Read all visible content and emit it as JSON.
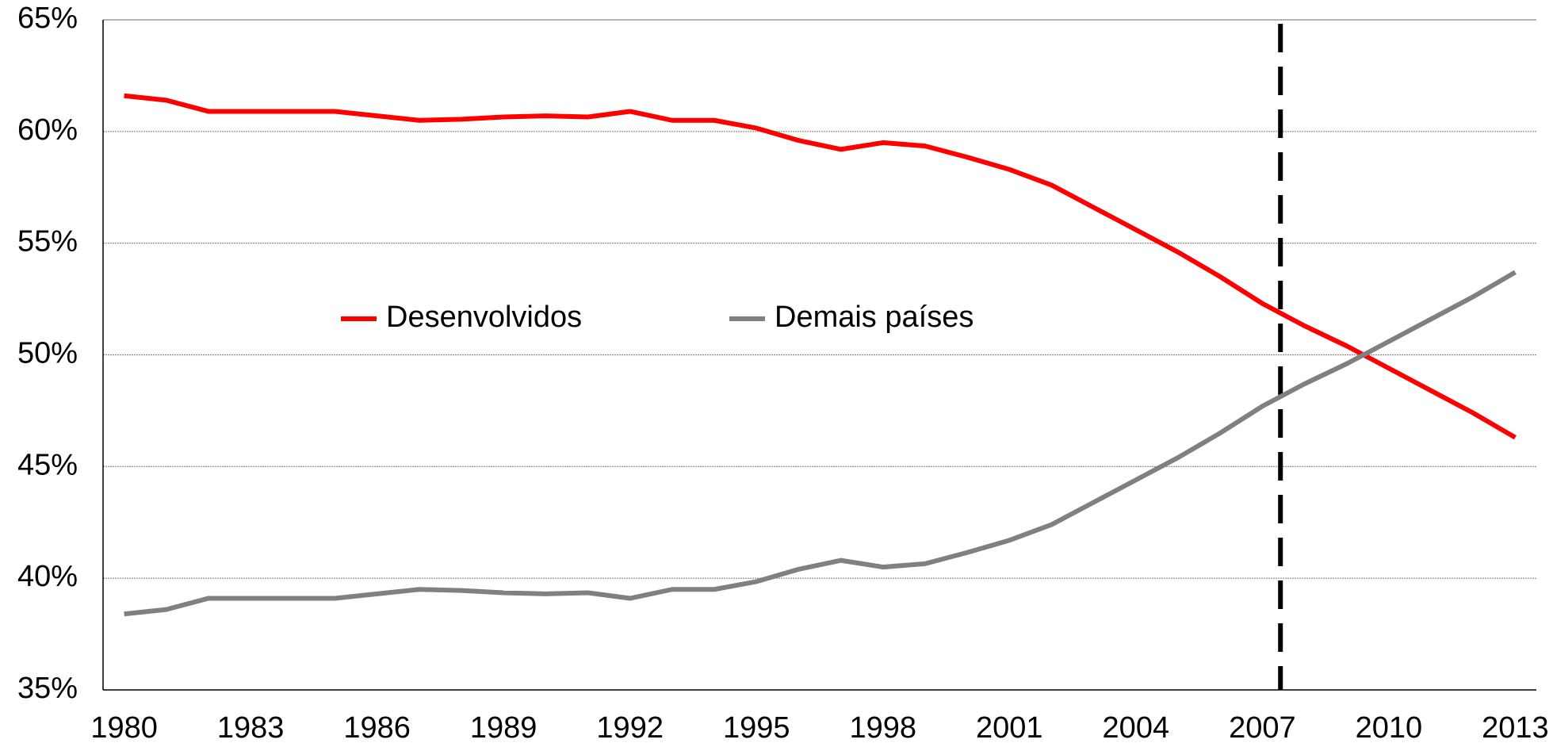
{
  "chart_data": {
    "type": "line",
    "categories": [
      "1980",
      null,
      null,
      "1983",
      null,
      null,
      "1986",
      null,
      null,
      "1989",
      null,
      null,
      "1992",
      null,
      null,
      "1995",
      null,
      null,
      "1998",
      null,
      null,
      "2001",
      null,
      null,
      "2004",
      null,
      null,
      "2007",
      null,
      null,
      "2010",
      null,
      null,
      "2013"
    ],
    "series": [
      {
        "name": "Desenvolvidos",
        "color": "#ff0000",
        "values": [
          61.6,
          61.4,
          60.9,
          60.9,
          60.9,
          60.9,
          60.7,
          60.5,
          60.55,
          60.65,
          60.7,
          60.65,
          60.9,
          60.5,
          60.5,
          60.15,
          59.6,
          59.2,
          59.5,
          59.35,
          58.85,
          58.3,
          57.6,
          56.6,
          55.6,
          54.6,
          53.5,
          52.3,
          51.3,
          50.4,
          49.4,
          48.4,
          47.4,
          46.3
        ]
      },
      {
        "name": "Demais países",
        "color": "#808080",
        "values": [
          38.4,
          38.6,
          39.1,
          39.1,
          39.1,
          39.1,
          39.3,
          39.5,
          39.45,
          39.35,
          39.3,
          39.35,
          39.1,
          39.5,
          39.5,
          39.85,
          40.4,
          40.8,
          40.5,
          40.65,
          41.15,
          41.7,
          42.4,
          43.4,
          44.4,
          45.4,
          46.5,
          47.7,
          48.7,
          49.6,
          50.6,
          51.6,
          52.6,
          53.7
        ]
      }
    ],
    "ylim": [
      35,
      65
    ],
    "yticks": [
      {
        "value": 35,
        "label": "35%"
      },
      {
        "value": 40,
        "label": "40%"
      },
      {
        "value": 45,
        "label": "45%"
      },
      {
        "value": 50,
        "label": "50%"
      },
      {
        "value": 55,
        "label": "55%"
      },
      {
        "value": 60,
        "label": "60%"
      },
      {
        "value": 65,
        "label": "65%"
      }
    ],
    "grid": true
  }
}
